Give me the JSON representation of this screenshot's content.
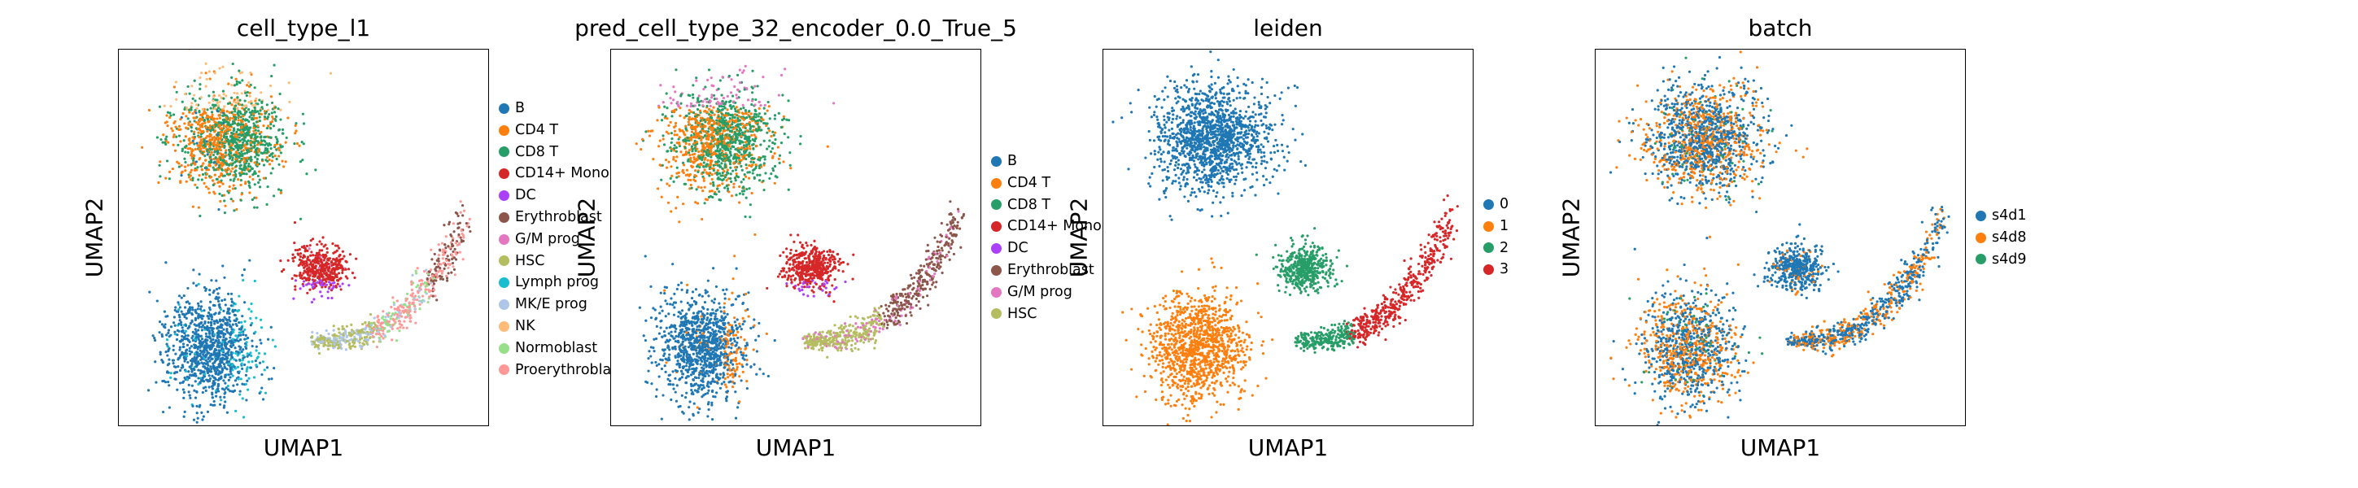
{
  "chart_data": [
    {
      "type": "scatter",
      "title": "cell_type_l1",
      "xlabel": "UMAP1",
      "ylabel": "UMAP2",
      "grid": false,
      "legend_position": "right",
      "legend": [
        {
          "label": "B",
          "color": "#1f77b4"
        },
        {
          "label": "CD4 T",
          "color": "#ff7f0e"
        },
        {
          "label": "CD8 T",
          "color": "#279e68"
        },
        {
          "label": "CD14+ Mono",
          "color": "#d62728"
        },
        {
          "label": "DC",
          "color": "#aa40fc"
        },
        {
          "label": "Erythroblast",
          "color": "#8c564b"
        },
        {
          "label": "G/M prog",
          "color": "#e377c2"
        },
        {
          "label": "HSC",
          "color": "#b5bd61"
        },
        {
          "label": "Lymph prog",
          "color": "#17becf"
        },
        {
          "label": "MK/E prog",
          "color": "#aec7e8"
        },
        {
          "label": "NK",
          "color": "#ffbb78"
        },
        {
          "label": "Normoblast",
          "color": "#98df8a"
        },
        {
          "label": "Proerythroblast",
          "color": "#ff9896"
        }
      ]
    },
    {
      "type": "scatter",
      "title": "pred_cell_type_32_encoder_0.0_True_5",
      "xlabel": "UMAP1",
      "ylabel": "UMAP2",
      "grid": false,
      "legend_position": "right",
      "legend": [
        {
          "label": "B",
          "color": "#1f77b4"
        },
        {
          "label": "CD4 T",
          "color": "#ff7f0e"
        },
        {
          "label": "CD8 T",
          "color": "#279e68"
        },
        {
          "label": "CD14+ Mono",
          "color": "#d62728"
        },
        {
          "label": "DC",
          "color": "#aa40fc"
        },
        {
          "label": "Erythroblast",
          "color": "#8c564b"
        },
        {
          "label": "G/M prog",
          "color": "#e377c2"
        },
        {
          "label": "HSC",
          "color": "#b5bd61"
        }
      ]
    },
    {
      "type": "scatter",
      "title": "leiden",
      "xlabel": "UMAP1",
      "ylabel": "UMAP2",
      "grid": false,
      "legend_position": "right",
      "legend": [
        {
          "label": "0",
          "color": "#1f77b4"
        },
        {
          "label": "1",
          "color": "#ff7f0e"
        },
        {
          "label": "2",
          "color": "#279e68"
        },
        {
          "label": "3",
          "color": "#d62728"
        }
      ]
    },
    {
      "type": "scatter",
      "title": "batch",
      "xlabel": "UMAP1",
      "ylabel": "UMAP2",
      "grid": false,
      "legend_position": "right",
      "legend": [
        {
          "label": "s4d1",
          "color": "#1f77b4"
        },
        {
          "label": "s4d8",
          "color": "#ff7f0e"
        },
        {
          "label": "s4d9",
          "color": "#279e68"
        }
      ]
    }
  ]
}
